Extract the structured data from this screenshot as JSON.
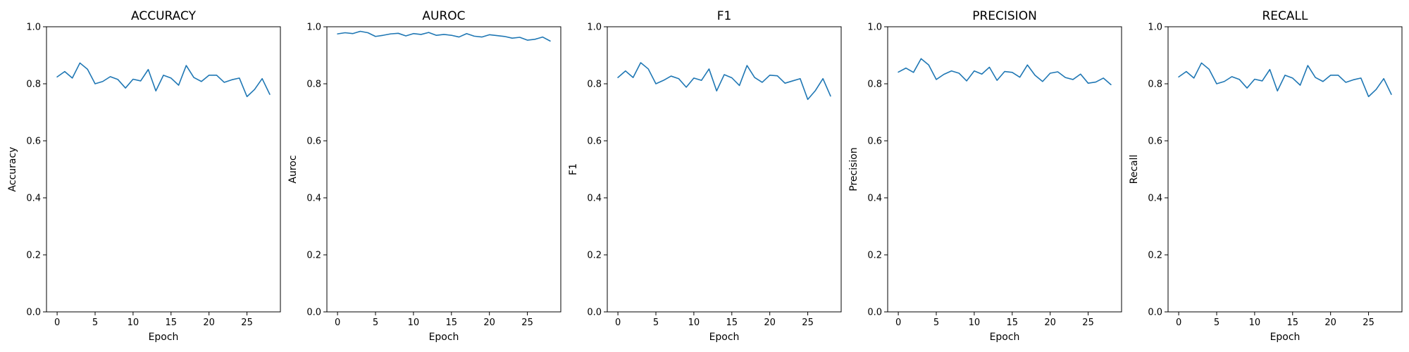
{
  "chart_data": [
    {
      "type": "line",
      "title": "ACCURACY",
      "xlabel": "Epoch",
      "ylabel": "Accuracy",
      "xlim": [
        -1.4,
        29.4
      ],
      "ylim": [
        0,
        1
      ],
      "xticks": [
        0,
        5,
        10,
        15,
        20,
        25
      ],
      "yticks": [
        0.0,
        0.2,
        0.4,
        0.6,
        0.8,
        1.0
      ],
      "grid": false,
      "line_color": "#1f77b4",
      "x": [
        0,
        1,
        2,
        3,
        4,
        5,
        6,
        7,
        8,
        9,
        10,
        11,
        12,
        13,
        14,
        15,
        16,
        17,
        18,
        19,
        20,
        21,
        22,
        23,
        24,
        25,
        26,
        27,
        28
      ],
      "values": [
        0.824,
        0.843,
        0.82,
        0.873,
        0.851,
        0.8,
        0.808,
        0.825,
        0.815,
        0.785,
        0.816,
        0.81,
        0.85,
        0.775,
        0.83,
        0.82,
        0.795,
        0.864,
        0.822,
        0.808,
        0.83,
        0.83,
        0.805,
        0.814,
        0.82,
        0.755,
        0.78,
        0.818,
        0.763
      ]
    },
    {
      "type": "line",
      "title": "AUROC",
      "xlabel": "Epoch",
      "ylabel": "Auroc",
      "xlim": [
        -1.4,
        29.4
      ],
      "ylim": [
        0,
        1
      ],
      "xticks": [
        0,
        5,
        10,
        15,
        20,
        25
      ],
      "yticks": [
        0.0,
        0.2,
        0.4,
        0.6,
        0.8,
        1.0
      ],
      "grid": false,
      "line_color": "#1f77b4",
      "x": [
        0,
        1,
        2,
        3,
        4,
        5,
        6,
        7,
        8,
        9,
        10,
        11,
        12,
        13,
        14,
        15,
        16,
        17,
        18,
        19,
        20,
        21,
        22,
        23,
        24,
        25,
        26,
        27,
        28
      ],
      "values": [
        0.975,
        0.979,
        0.976,
        0.984,
        0.979,
        0.966,
        0.97,
        0.975,
        0.977,
        0.968,
        0.976,
        0.973,
        0.98,
        0.97,
        0.973,
        0.97,
        0.964,
        0.976,
        0.967,
        0.964,
        0.972,
        0.969,
        0.966,
        0.96,
        0.963,
        0.953,
        0.956,
        0.964,
        0.95
      ]
    },
    {
      "type": "line",
      "title": "F1",
      "xlabel": "Epoch",
      "ylabel": "F1",
      "xlim": [
        -1.4,
        29.4
      ],
      "ylim": [
        0,
        1
      ],
      "xticks": [
        0,
        5,
        10,
        15,
        20,
        25
      ],
      "yticks": [
        0.0,
        0.2,
        0.4,
        0.6,
        0.8,
        1.0
      ],
      "grid": false,
      "line_color": "#1f77b4",
      "x": [
        0,
        1,
        2,
        3,
        4,
        5,
        6,
        7,
        8,
        9,
        10,
        11,
        12,
        13,
        14,
        15,
        16,
        17,
        18,
        19,
        20,
        21,
        22,
        23,
        24,
        25,
        26,
        27,
        28
      ],
      "values": [
        0.822,
        0.845,
        0.822,
        0.874,
        0.852,
        0.8,
        0.812,
        0.827,
        0.818,
        0.788,
        0.82,
        0.812,
        0.852,
        0.775,
        0.832,
        0.821,
        0.794,
        0.864,
        0.822,
        0.805,
        0.83,
        0.828,
        0.802,
        0.81,
        0.818,
        0.745,
        0.776,
        0.818,
        0.757
      ]
    },
    {
      "type": "line",
      "title": "PRECISION",
      "xlabel": "Epoch",
      "ylabel": "Precision",
      "xlim": [
        -1.4,
        29.4
      ],
      "ylim": [
        0,
        1
      ],
      "xticks": [
        0,
        5,
        10,
        15,
        20,
        25
      ],
      "yticks": [
        0.0,
        0.2,
        0.4,
        0.6,
        0.8,
        1.0
      ],
      "grid": false,
      "line_color": "#1f77b4",
      "x": [
        0,
        1,
        2,
        3,
        4,
        5,
        6,
        7,
        8,
        9,
        10,
        11,
        12,
        13,
        14,
        15,
        16,
        17,
        18,
        19,
        20,
        21,
        22,
        23,
        24,
        25,
        26,
        27,
        28
      ],
      "values": [
        0.841,
        0.855,
        0.84,
        0.888,
        0.866,
        0.815,
        0.833,
        0.845,
        0.837,
        0.81,
        0.845,
        0.834,
        0.858,
        0.812,
        0.843,
        0.84,
        0.823,
        0.866,
        0.83,
        0.808,
        0.837,
        0.842,
        0.822,
        0.815,
        0.834,
        0.802,
        0.806,
        0.82,
        0.797
      ]
    },
    {
      "type": "line",
      "title": "RECALL",
      "xlabel": "Epoch",
      "ylabel": "Recall",
      "xlim": [
        -1.4,
        29.4
      ],
      "ylim": [
        0,
        1
      ],
      "xticks": [
        0,
        5,
        10,
        15,
        20,
        25
      ],
      "yticks": [
        0.0,
        0.2,
        0.4,
        0.6,
        0.8,
        1.0
      ],
      "grid": false,
      "line_color": "#1f77b4",
      "x": [
        0,
        1,
        2,
        3,
        4,
        5,
        6,
        7,
        8,
        9,
        10,
        11,
        12,
        13,
        14,
        15,
        16,
        17,
        18,
        19,
        20,
        21,
        22,
        23,
        24,
        25,
        26,
        27,
        28
      ],
      "values": [
        0.824,
        0.843,
        0.82,
        0.873,
        0.851,
        0.8,
        0.808,
        0.825,
        0.815,
        0.785,
        0.816,
        0.81,
        0.85,
        0.775,
        0.83,
        0.82,
        0.795,
        0.864,
        0.822,
        0.808,
        0.83,
        0.83,
        0.805,
        0.814,
        0.82,
        0.755,
        0.78,
        0.818,
        0.763
      ]
    }
  ]
}
